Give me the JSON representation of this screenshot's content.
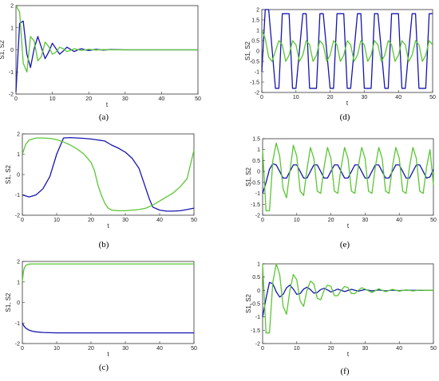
{
  "colors": {
    "s1": "#1515b0",
    "s2": "#5ac633"
  },
  "chart_data": [
    {
      "id": "a",
      "type": "line",
      "caption": "(a)",
      "xlabel": "t",
      "ylabel": "S1, S2",
      "xlim": [
        0,
        50
      ],
      "ylim": [
        -2,
        2
      ],
      "xticks": [
        0,
        10,
        20,
        30,
        40,
        50
      ],
      "yticks": [
        -2,
        -1,
        0,
        1,
        2
      ],
      "series": [
        {
          "color": "#1515b0",
          "x": [
            0,
            1,
            2,
            3,
            4,
            5,
            6,
            7,
            8,
            9,
            10,
            11,
            12,
            13,
            14,
            15,
            16,
            17,
            18,
            19,
            20,
            22,
            24,
            26,
            30,
            35,
            40,
            45,
            50
          ],
          "y": [
            -1.9,
            1.2,
            1.3,
            -0.2,
            -0.8,
            0.05,
            0.6,
            0.1,
            -0.4,
            -0.1,
            0.3,
            0.05,
            -0.2,
            -0.05,
            0.12,
            0.02,
            -0.08,
            0,
            0.05,
            0,
            -0.03,
            0.02,
            -0.01,
            0.01,
            0,
            0,
            0,
            0,
            0
          ]
        },
        {
          "color": "#5ac633",
          "x": [
            0,
            1,
            2,
            3,
            4,
            5,
            6,
            7,
            8,
            9,
            10,
            11,
            12,
            13,
            14,
            15,
            16,
            17,
            18,
            19,
            20,
            22,
            24,
            26,
            30,
            35,
            40,
            45,
            50
          ],
          "y": [
            2.0,
            1.7,
            -0.6,
            -1.0,
            0.6,
            0.4,
            -0.5,
            -0.3,
            0.35,
            0.15,
            -0.2,
            -0.1,
            0.12,
            0.05,
            -0.08,
            -0.02,
            0.05,
            0.01,
            -0.03,
            0,
            0.02,
            -0.01,
            0.01,
            0,
            0,
            0,
            0,
            0,
            0
          ]
        }
      ]
    },
    {
      "id": "b",
      "type": "line",
      "caption": "(b)",
      "xlabel": "t",
      "ylabel": "S1, S2",
      "xlim": [
        0,
        50
      ],
      "ylim": [
        -2,
        2
      ],
      "xticks": [
        0,
        10,
        20,
        30,
        40,
        50
      ],
      "yticks": [
        -2,
        -1,
        0,
        1,
        2
      ],
      "series": [
        {
          "color": "#1515b0",
          "x": [
            0,
            2,
            4,
            6,
            8,
            10,
            12,
            14,
            16,
            18,
            20,
            22,
            24,
            26,
            28,
            30,
            32,
            34,
            36,
            37,
            38,
            40,
            42,
            44,
            46,
            48,
            50
          ],
          "y": [
            -1.0,
            -1.1,
            -1.0,
            -0.7,
            -0.1,
            1.0,
            1.8,
            1.82,
            1.8,
            1.78,
            1.75,
            1.7,
            1.65,
            1.45,
            1.3,
            1.1,
            0.8,
            0.3,
            -0.7,
            -1.2,
            -1.6,
            -1.75,
            -1.8,
            -1.8,
            -1.78,
            -1.72,
            -1.65
          ]
        },
        {
          "color": "#5ac633",
          "x": [
            0,
            1,
            2,
            4,
            6,
            8,
            10,
            12,
            14,
            16,
            18,
            20,
            21,
            22,
            23,
            24,
            25,
            26,
            28,
            30,
            32,
            34,
            36,
            38,
            40,
            42,
            44,
            46,
            48,
            50
          ],
          "y": [
            1.0,
            1.5,
            1.7,
            1.8,
            1.8,
            1.78,
            1.72,
            1.6,
            1.45,
            1.25,
            1.0,
            0.6,
            0.2,
            -0.5,
            -1.0,
            -1.4,
            -1.65,
            -1.75,
            -1.78,
            -1.78,
            -1.75,
            -1.72,
            -1.65,
            -1.5,
            -1.3,
            -1.1,
            -0.9,
            -0.6,
            -0.2,
            1.2
          ]
        }
      ]
    },
    {
      "id": "c",
      "type": "line",
      "caption": "(c)",
      "xlabel": "t",
      "ylabel": "S1, S2",
      "xlim": [
        0,
        50
      ],
      "ylim": [
        -2,
        2
      ],
      "xticks": [
        0,
        10,
        20,
        30,
        40,
        50
      ],
      "yticks": [
        -2,
        -1,
        0,
        1,
        2
      ],
      "series": [
        {
          "color": "#1515b0",
          "x": [
            0,
            0.5,
            1,
            2,
            3,
            4,
            6,
            8,
            10,
            15,
            20,
            30,
            40,
            50
          ],
          "y": [
            -1.0,
            -1.15,
            -1.25,
            -1.35,
            -1.4,
            -1.43,
            -1.46,
            -1.47,
            -1.48,
            -1.48,
            -1.48,
            -1.48,
            -1.48,
            -1.48
          ]
        },
        {
          "color": "#5ac633",
          "x": [
            0,
            0.3,
            0.6,
            1,
            1.5,
            2,
            3,
            4,
            6,
            10,
            20,
            30,
            40,
            50
          ],
          "y": [
            1.0,
            1.5,
            1.7,
            1.8,
            1.85,
            1.87,
            1.88,
            1.88,
            1.88,
            1.88,
            1.88,
            1.88,
            1.88,
            1.88
          ]
        }
      ]
    },
    {
      "id": "d",
      "type": "line",
      "caption": "(d)",
      "xlabel": "t",
      "ylabel": "S1, S2",
      "xlim": [
        0,
        50
      ],
      "ylim": [
        -2,
        2
      ],
      "xticks": [
        0,
        10,
        20,
        30,
        40,
        50
      ],
      "yticks": [
        -2,
        -1.5,
        -1,
        -0.5,
        0,
        0.5,
        1,
        1.5,
        2
      ],
      "series": [
        {
          "color": "#1515b0",
          "x": [
            0,
            1,
            2,
            4,
            5,
            6,
            8,
            9,
            10,
            12,
            13,
            14,
            16,
            17,
            18,
            20,
            21,
            22,
            24,
            25,
            26,
            28,
            29,
            30,
            32,
            33,
            34,
            36,
            37,
            38,
            40,
            41,
            42,
            44,
            45,
            46,
            48,
            49,
            50
          ],
          "y": [
            -1.0,
            2.0,
            2.0,
            -1.8,
            -1.8,
            1.8,
            1.8,
            -1.8,
            -1.8,
            1.8,
            1.8,
            -1.8,
            -1.8,
            1.8,
            1.8,
            -1.8,
            -1.8,
            1.8,
            1.8,
            -1.8,
            -1.8,
            1.8,
            1.8,
            -1.8,
            -1.8,
            1.8,
            1.8,
            -1.8,
            -1.8,
            1.8,
            1.8,
            -1.8,
            -1.8,
            1.8,
            1.8,
            -1.8,
            -1.8,
            1.8,
            1.8
          ]
        },
        {
          "color": "#5ac633",
          "x": [
            0,
            1,
            2,
            3,
            4,
            5,
            6,
            7,
            8,
            9,
            10,
            11,
            12,
            13,
            14,
            15,
            16,
            17,
            18,
            19,
            20,
            21,
            22,
            23,
            24,
            25,
            26,
            27,
            28,
            29,
            30,
            31,
            32,
            33,
            34,
            35,
            36,
            37,
            38,
            39,
            40,
            41,
            42,
            43,
            44,
            45,
            46,
            47,
            48,
            49,
            50
          ],
          "y": [
            1.0,
            0.6,
            -0.3,
            -0.5,
            0,
            0.5,
            0.3,
            -0.5,
            -0.2,
            0.5,
            0.3,
            -0.5,
            -0.2,
            0.5,
            0.3,
            -0.5,
            -0.2,
            0.5,
            0.3,
            -0.5,
            -0.2,
            0.5,
            0.3,
            -0.5,
            -0.2,
            0.5,
            0.3,
            -0.5,
            -0.2,
            0.5,
            0.3,
            -0.5,
            -0.2,
            0.5,
            0.3,
            -0.5,
            -0.2,
            0.5,
            0.3,
            -0.5,
            -0.2,
            0.5,
            0.3,
            -0.5,
            -0.2,
            0.5,
            0.3,
            -0.5,
            -0.2,
            0.5,
            0.3
          ]
        }
      ]
    },
    {
      "id": "e",
      "type": "line",
      "caption": "(e)",
      "xlabel": "t",
      "ylabel": "S1, S2",
      "xlim": [
        0,
        50
      ],
      "ylim": [
        -2,
        1.5
      ],
      "xticks": [
        0,
        10,
        20,
        30,
        40,
        50
      ],
      "yticks": [
        -2,
        -1.5,
        -1,
        -0.5,
        0,
        0.5,
        1,
        1.5
      ],
      "series": [
        {
          "color": "#1515b0",
          "x": [
            0,
            1,
            2,
            3,
            4,
            5,
            6,
            7,
            8,
            9,
            10,
            11,
            12,
            13,
            14,
            15,
            16,
            17,
            18,
            19,
            20,
            21,
            22,
            23,
            24,
            25,
            26,
            27,
            28,
            29,
            30,
            31,
            32,
            33,
            34,
            35,
            36,
            37,
            38,
            39,
            40,
            41,
            42,
            43,
            44,
            45,
            46,
            47,
            48,
            49,
            50
          ],
          "y": [
            -1.0,
            -0.5,
            0.1,
            0.35,
            0.3,
            0,
            -0.3,
            -0.3,
            0,
            0.3,
            0.3,
            0,
            -0.3,
            -0.3,
            0,
            0.3,
            0.3,
            0,
            -0.3,
            -0.3,
            0,
            0.3,
            0.3,
            0,
            -0.3,
            -0.3,
            0,
            0.3,
            0.3,
            0,
            -0.3,
            -0.3,
            0,
            0.3,
            0.3,
            0,
            -0.3,
            -0.3,
            0,
            0.3,
            0.3,
            0,
            -0.3,
            -0.3,
            0,
            0.3,
            0.3,
            0,
            -0.3,
            -0.25,
            0.1
          ]
        },
        {
          "color": "#5ac633",
          "x": [
            0,
            1,
            2,
            3,
            4,
            5,
            6,
            7,
            8,
            9,
            10,
            11,
            12,
            13,
            14,
            15,
            16,
            17,
            18,
            19,
            20,
            21,
            22,
            23,
            24,
            25,
            26,
            27,
            28,
            29,
            30,
            31,
            32,
            33,
            34,
            35,
            36,
            37,
            38,
            39,
            40,
            41,
            42,
            43,
            44,
            45,
            46,
            47,
            48,
            49,
            50
          ],
          "y": [
            1.0,
            -1.8,
            -1.8,
            0.5,
            1.3,
            0.7,
            -0.8,
            -1.2,
            0,
            1.2,
            0.7,
            -0.9,
            -1.1,
            0.1,
            1.1,
            0.6,
            -0.9,
            -1.0,
            0.2,
            1.1,
            0.6,
            -0.9,
            -1.0,
            0.2,
            1.1,
            0.6,
            -0.9,
            -1.0,
            0.2,
            1.1,
            0.6,
            -0.9,
            -1.0,
            0.2,
            1.1,
            0.6,
            -0.9,
            -1.0,
            0.2,
            1.1,
            0.6,
            -0.9,
            -1.0,
            0.2,
            1.1,
            0.6,
            -0.9,
            -1.0,
            0.2,
            1.0,
            -0.6
          ]
        }
      ]
    },
    {
      "id": "f",
      "type": "line",
      "caption": "(f)",
      "xlabel": "t",
      "ylabel": "S1, S2",
      "xlim": [
        0,
        50
      ],
      "ylim": [
        -2,
        1
      ],
      "xticks": [
        0,
        10,
        20,
        30,
        40,
        50
      ],
      "yticks": [
        -2,
        -1.5,
        -1,
        -0.5,
        0,
        0.5,
        1
      ],
      "series": [
        {
          "color": "#1515b0",
          "x": [
            0,
            1,
            2,
            3,
            4,
            5,
            6,
            7,
            8,
            9,
            10,
            11,
            12,
            13,
            14,
            15,
            16,
            17,
            18,
            19,
            20,
            22,
            24,
            26,
            28,
            30,
            32,
            34,
            36,
            38,
            40,
            42,
            44,
            46,
            48,
            50
          ],
          "y": [
            -1.0,
            -0.3,
            0.3,
            0.25,
            -0.05,
            -0.25,
            -0.15,
            0.1,
            0.2,
            0.05,
            -0.15,
            -0.12,
            0.05,
            0.12,
            0.03,
            -0.1,
            -0.08,
            0.03,
            0.08,
            0.02,
            -0.06,
            0.05,
            -0.04,
            0.04,
            -0.03,
            0.03,
            -0.02,
            0.02,
            -0.02,
            0.01,
            -0.01,
            0.01,
            0,
            0,
            0,
            0
          ]
        },
        {
          "color": "#5ac633",
          "x": [
            0,
            1,
            2,
            3,
            4,
            5,
            6,
            7,
            8,
            9,
            10,
            11,
            12,
            13,
            14,
            15,
            16,
            17,
            18,
            19,
            20,
            21,
            22,
            23,
            24,
            25,
            26,
            27,
            28,
            29,
            30,
            32,
            34,
            36,
            38,
            40,
            42,
            44,
            46,
            48,
            50
          ],
          "y": [
            1.0,
            -1.6,
            -1.6,
            0.3,
            1.05,
            0.6,
            -0.6,
            -0.9,
            0,
            0.6,
            0.4,
            -0.4,
            -0.6,
            0,
            0.35,
            0.25,
            -0.3,
            -0.35,
            0,
            0.2,
            0.15,
            -0.2,
            -0.2,
            0,
            0.15,
            0.1,
            -0.12,
            -0.12,
            0,
            0.1,
            0.05,
            -0.08,
            0.06,
            -0.05,
            0.04,
            -0.03,
            0.02,
            -0.02,
            0.01,
            0,
            0
          ]
        }
      ]
    }
  ]
}
